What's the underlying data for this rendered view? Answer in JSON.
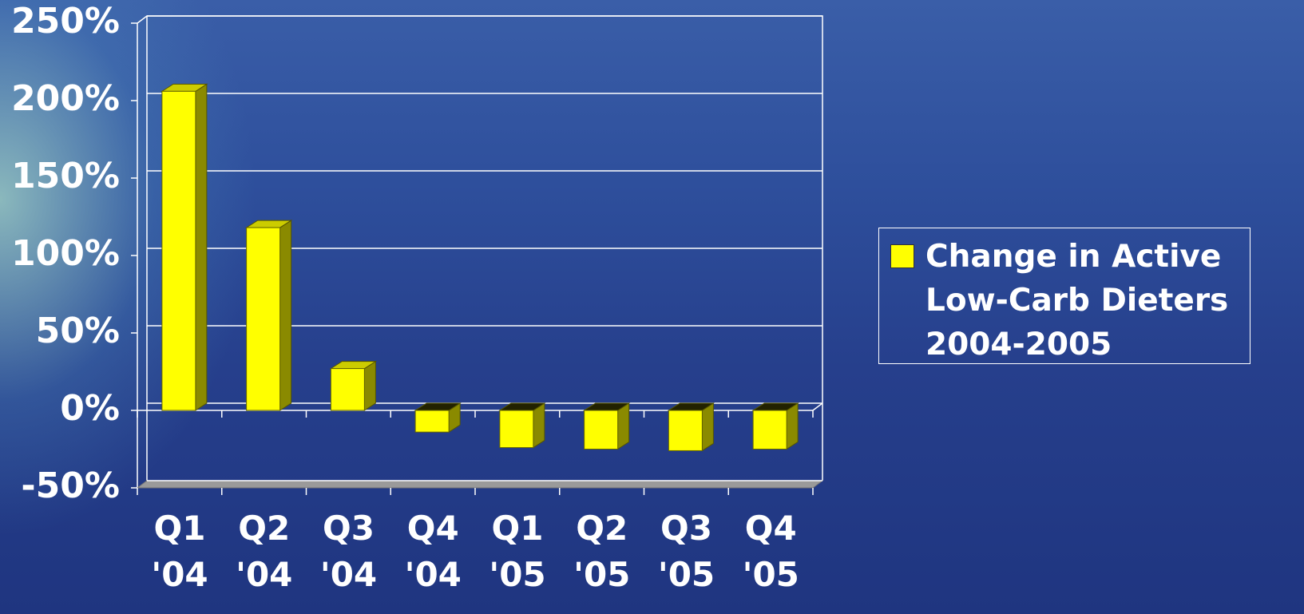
{
  "chart_data": {
    "type": "bar",
    "categories": [
      "Q1\n'04",
      "Q2\n'04",
      "Q3\n'04",
      "Q4\n'04",
      "Q1\n'05",
      "Q2\n'05",
      "Q3\n'05",
      "Q4\n'05"
    ],
    "series": [
      {
        "name": "Change in Active Low-Carb Dieters 2004-2005",
        "color": "#ffff00",
        "values": [
          206,
          118,
          27,
          -14,
          -24,
          -25,
          -26,
          -25
        ]
      }
    ],
    "ylim": [
      -50,
      250
    ],
    "yticks": [
      {
        "value": -50,
        "label": "-50%"
      },
      {
        "value": 0,
        "label": "0%"
      },
      {
        "value": 50,
        "label": "50%"
      },
      {
        "value": 100,
        "label": "100%"
      },
      {
        "value": 150,
        "label": "150%"
      },
      {
        "value": 200,
        "label": "200%"
      },
      {
        "value": 250,
        "label": "250%"
      }
    ],
    "grid": true,
    "legend": "right"
  }
}
